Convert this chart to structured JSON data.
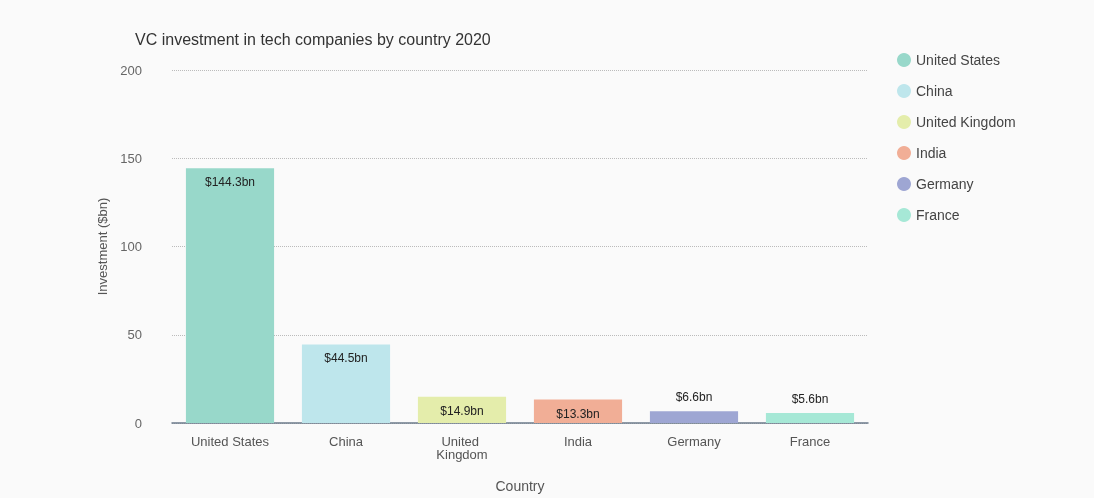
{
  "chart_data": {
    "type": "bar",
    "title": "VC investment in tech companies by country 2020",
    "xlabel": "Country",
    "ylabel": "Investment ($bn)",
    "categories": [
      "United States",
      "China",
      "United Kingdom",
      "India",
      "Germany",
      "France"
    ],
    "series": [
      {
        "name": "United States",
        "color": "#98d8ca",
        "values": [
          144.3,
          null,
          null,
          null,
          null,
          null
        ],
        "value_labels": [
          "$144.3bn",
          null,
          null,
          null,
          null,
          null
        ]
      },
      {
        "name": "China",
        "color": "#bee6ec",
        "values": [
          null,
          44.5,
          null,
          null,
          null,
          null
        ],
        "value_labels": [
          null,
          "$44.5bn",
          null,
          null,
          null,
          null
        ]
      },
      {
        "name": "United Kingdom",
        "color": "#e4edab",
        "values": [
          null,
          null,
          14.9,
          null,
          null,
          null
        ],
        "value_labels": [
          null,
          null,
          "$14.9bn",
          null,
          null,
          null
        ]
      },
      {
        "name": "India",
        "color": "#f1ae96",
        "values": [
          null,
          null,
          null,
          13.3,
          null,
          null
        ],
        "value_labels": [
          null,
          null,
          null,
          "$13.3bn",
          null,
          null
        ]
      },
      {
        "name": "Germany",
        "color": "#9ea6d3",
        "values": [
          null,
          null,
          null,
          null,
          6.6,
          null
        ],
        "value_labels": [
          null,
          null,
          null,
          null,
          "$6.6bn",
          null
        ]
      },
      {
        "name": "France",
        "color": "#a6e8d6",
        "values": [
          null,
          null,
          null,
          null,
          null,
          5.6
        ],
        "value_labels": [
          null,
          null,
          null,
          null,
          null,
          "$5.6bn"
        ]
      }
    ],
    "stacked": true,
    "ylim": [
      0,
      200
    ],
    "yticks": [
      0,
      50,
      100,
      150,
      200
    ],
    "grid": "y",
    "legend": "top right",
    "marker": "circle"
  }
}
